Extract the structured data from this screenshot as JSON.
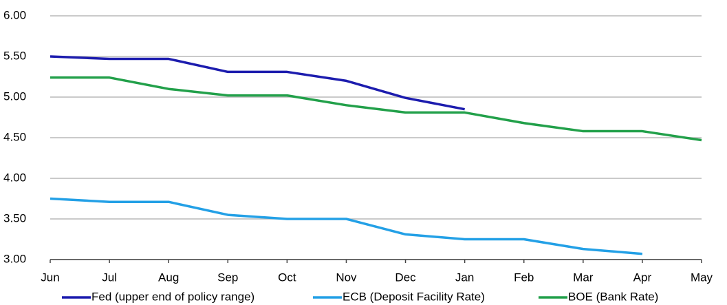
{
  "chart_data": {
    "type": "line",
    "categories": [
      "Jun",
      "Jul",
      "Aug",
      "Sep",
      "Oct",
      "Nov",
      "Dec",
      "Jan",
      "Feb",
      "Mar",
      "Apr",
      "May"
    ],
    "series": [
      {
        "name": "Fed (upper end of policy range)",
        "color": "#1c1cae",
        "values": [
          5.5,
          5.47,
          5.47,
          5.31,
          5.31,
          5.2,
          4.99,
          4.85,
          null,
          null,
          null,
          null
        ]
      },
      {
        "name": "ECB (Deposit Facility Rate)",
        "color": "#23a0e6",
        "values": [
          3.75,
          3.71,
          3.71,
          3.55,
          3.5,
          3.5,
          3.31,
          3.25,
          3.25,
          3.13,
          3.07,
          null
        ]
      },
      {
        "name": "BOE (Bank Rate)",
        "color": "#22a04a",
        "values": [
          5.24,
          5.24,
          5.1,
          5.02,
          5.02,
          4.9,
          4.81,
          4.81,
          4.68,
          4.58,
          4.58,
          4.47
        ]
      }
    ],
    "ylim": [
      3.0,
      6.0
    ],
    "yticks": [
      {
        "value": 3,
        "label": "3.00"
      },
      {
        "value": 3.5,
        "label": "3.50"
      },
      {
        "value": 4,
        "label": "4.00"
      },
      {
        "value": 4.5,
        "label": "4.50"
      },
      {
        "value": 5,
        "label": "5.00"
      },
      {
        "value": 5.5,
        "label": "5.50"
      },
      {
        "value": 6,
        "label": "6.00"
      }
    ],
    "grid": true,
    "legend": "bottom"
  }
}
